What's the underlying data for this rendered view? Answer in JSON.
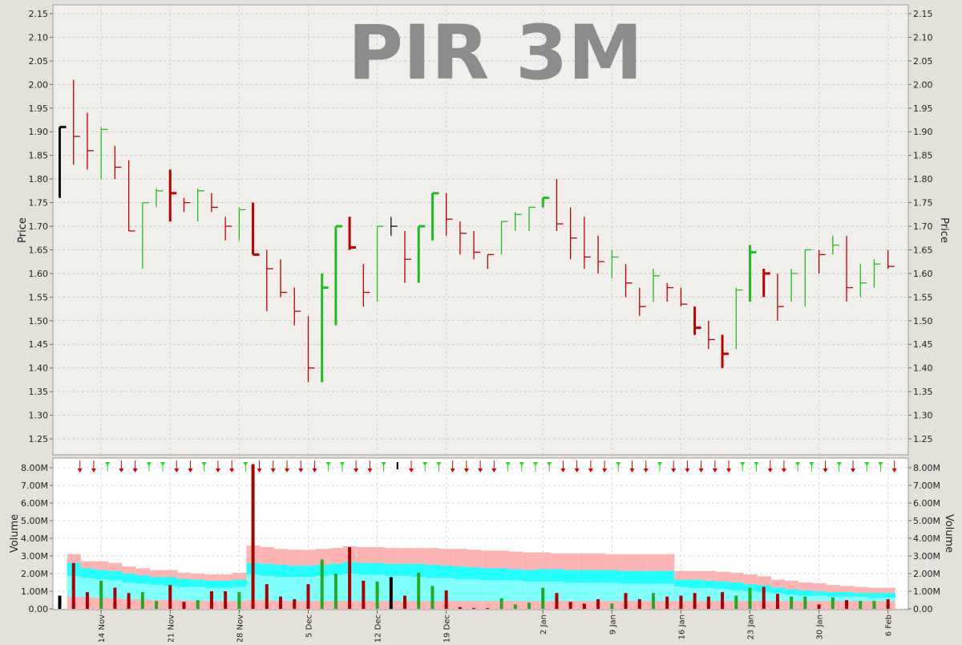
{
  "chart_data": [
    {
      "type": "ohlc",
      "title": "PIR 3M",
      "ylabel": "Price",
      "ylim": [
        1.21,
        2.17
      ],
      "yticks": [
        "1.25",
        "1.30",
        "1.35",
        "1.40",
        "1.45",
        "1.50",
        "1.55",
        "1.60",
        "1.65",
        "1.70",
        "1.75",
        "1.80",
        "1.85",
        "1.90",
        "1.95",
        "2.00",
        "2.05",
        "2.10",
        "2.15"
      ],
      "xtick_labels": [
        "14 Nov",
        "21 Nov",
        "28 Nov",
        "5 Dec",
        "12 Dec",
        "19 Dec",
        "2 Jan",
        "9 Jan",
        "16 Jan",
        "23 Jan",
        "30 Jan",
        "6 Feb"
      ],
      "xtick_index": [
        3,
        8,
        13,
        18,
        23,
        28,
        35,
        40,
        45,
        50,
        55,
        60
      ],
      "bars": [
        {
          "h": 1.91,
          "l": 1.76,
          "o": 1.91,
          "c": 1.91,
          "dir": "flat",
          "w": "thick"
        },
        {
          "h": 2.01,
          "l": 1.83,
          "o": 1.89,
          "c": 1.89,
          "dir": "down",
          "w": "thin"
        },
        {
          "h": 1.94,
          "l": 1.82,
          "o": 1.86,
          "c": 1.86,
          "dir": "down",
          "w": "thin"
        },
        {
          "h": 1.91,
          "l": 1.8,
          "o": 1.9,
          "c": 1.905,
          "dir": "up",
          "w": "thin"
        },
        {
          "h": 1.87,
          "l": 1.8,
          "o": 1.825,
          "c": 1.825,
          "dir": "down",
          "w": "thin"
        },
        {
          "h": 1.84,
          "l": 1.69,
          "o": 1.69,
          "c": 1.69,
          "dir": "down",
          "w": "thin"
        },
        {
          "h": 1.75,
          "l": 1.61,
          "o": 1.75,
          "c": 1.75,
          "dir": "up",
          "w": "thin"
        },
        {
          "h": 1.78,
          "l": 1.74,
          "o": 1.775,
          "c": 1.775,
          "dir": "up",
          "w": "thin"
        },
        {
          "h": 1.82,
          "l": 1.71,
          "o": 1.77,
          "c": 1.77,
          "dir": "down",
          "w": "thick"
        },
        {
          "h": 1.76,
          "l": 1.73,
          "o": 1.75,
          "c": 1.75,
          "dir": "down",
          "w": "thin"
        },
        {
          "h": 1.78,
          "l": 1.71,
          "o": 1.775,
          "c": 1.775,
          "dir": "up",
          "w": "thin"
        },
        {
          "h": 1.77,
          "l": 1.73,
          "o": 1.74,
          "c": 1.74,
          "dir": "down",
          "w": "thin"
        },
        {
          "h": 1.72,
          "l": 1.67,
          "o": 1.7,
          "c": 1.7,
          "dir": "down",
          "w": "thin"
        },
        {
          "h": 1.74,
          "l": 1.67,
          "o": 1.73,
          "c": 1.735,
          "dir": "up",
          "w": "thin"
        },
        {
          "h": 1.75,
          "l": 1.64,
          "o": 1.64,
          "c": 1.64,
          "dir": "down",
          "w": "thick"
        },
        {
          "h": 1.65,
          "l": 1.52,
          "o": 1.61,
          "c": 1.61,
          "dir": "down",
          "w": "thin"
        },
        {
          "h": 1.63,
          "l": 1.55,
          "o": 1.56,
          "c": 1.56,
          "dir": "down",
          "w": "thin"
        },
        {
          "h": 1.57,
          "l": 1.49,
          "o": 1.52,
          "c": 1.52,
          "dir": "down",
          "w": "thin"
        },
        {
          "h": 1.51,
          "l": 1.37,
          "o": 1.4,
          "c": 1.4,
          "dir": "down",
          "w": "thin"
        },
        {
          "h": 1.6,
          "l": 1.37,
          "o": 1.57,
          "c": 1.57,
          "dir": "up",
          "w": "thick"
        },
        {
          "h": 1.7,
          "l": 1.49,
          "o": 1.7,
          "c": 1.7,
          "dir": "up",
          "w": "thick"
        },
        {
          "h": 1.72,
          "l": 1.65,
          "o": 1.655,
          "c": 1.655,
          "dir": "down",
          "w": "thick"
        },
        {
          "h": 1.62,
          "l": 1.53,
          "o": 1.56,
          "c": 1.56,
          "dir": "down",
          "w": "thin"
        },
        {
          "h": 1.7,
          "l": 1.54,
          "o": 1.7,
          "c": 1.7,
          "dir": "up",
          "w": "thin"
        },
        {
          "h": 1.72,
          "l": 1.68,
          "o": 1.7,
          "c": 1.7,
          "dir": "flat",
          "w": "thin"
        },
        {
          "h": 1.69,
          "l": 1.58,
          "o": 1.63,
          "c": 1.63,
          "dir": "down",
          "w": "thin"
        },
        {
          "h": 1.7,
          "l": 1.58,
          "o": 1.7,
          "c": 1.7,
          "dir": "up",
          "w": "thick"
        },
        {
          "h": 1.77,
          "l": 1.67,
          "o": 1.77,
          "c": 1.77,
          "dir": "up",
          "w": "thick"
        },
        {
          "h": 1.77,
          "l": 1.68,
          "o": 1.715,
          "c": 1.715,
          "dir": "down",
          "w": "thin"
        },
        {
          "h": 1.71,
          "l": 1.64,
          "o": 1.685,
          "c": 1.685,
          "dir": "down",
          "w": "thin"
        },
        {
          "h": 1.69,
          "l": 1.63,
          "o": 1.645,
          "c": 1.645,
          "dir": "down",
          "w": "thin"
        },
        {
          "h": 1.64,
          "l": 1.61,
          "o": 1.64,
          "c": 1.64,
          "dir": "down",
          "w": "thin"
        },
        {
          "h": 1.71,
          "l": 1.64,
          "o": 1.71,
          "c": 1.71,
          "dir": "up",
          "w": "thin"
        },
        {
          "h": 1.73,
          "l": 1.69,
          "o": 1.725,
          "c": 1.725,
          "dir": "up",
          "w": "thin"
        },
        {
          "h": 1.74,
          "l": 1.69,
          "o": 1.74,
          "c": 1.74,
          "dir": "up",
          "w": "thin"
        },
        {
          "h": 1.76,
          "l": 1.74,
          "o": 1.76,
          "c": 1.76,
          "dir": "up",
          "w": "thick"
        },
        {
          "h": 1.8,
          "l": 1.69,
          "o": 1.705,
          "c": 1.705,
          "dir": "down",
          "w": "thin"
        },
        {
          "h": 1.74,
          "l": 1.63,
          "o": 1.675,
          "c": 1.675,
          "dir": "down",
          "w": "thin"
        },
        {
          "h": 1.72,
          "l": 1.61,
          "o": 1.635,
          "c": 1.635,
          "dir": "down",
          "w": "thin"
        },
        {
          "h": 1.68,
          "l": 1.6,
          "o": 1.625,
          "c": 1.625,
          "dir": "down",
          "w": "thin"
        },
        {
          "h": 1.65,
          "l": 1.59,
          "o": 1.635,
          "c": 1.635,
          "dir": "up",
          "w": "thin"
        },
        {
          "h": 1.62,
          "l": 1.55,
          "o": 1.58,
          "c": 1.58,
          "dir": "down",
          "w": "thin"
        },
        {
          "h": 1.57,
          "l": 1.51,
          "o": 1.53,
          "c": 1.53,
          "dir": "down",
          "w": "thin"
        },
        {
          "h": 1.61,
          "l": 1.54,
          "o": 1.595,
          "c": 1.595,
          "dir": "up",
          "w": "thin"
        },
        {
          "h": 1.58,
          "l": 1.54,
          "o": 1.57,
          "c": 1.57,
          "dir": "down",
          "w": "thin"
        },
        {
          "h": 1.57,
          "l": 1.53,
          "o": 1.535,
          "c": 1.535,
          "dir": "down",
          "w": "thin"
        },
        {
          "h": 1.53,
          "l": 1.47,
          "o": 1.485,
          "c": 1.485,
          "dir": "down",
          "w": "thick"
        },
        {
          "h": 1.5,
          "l": 1.44,
          "o": 1.46,
          "c": 1.46,
          "dir": "down",
          "w": "thin"
        },
        {
          "h": 1.47,
          "l": 1.4,
          "o": 1.43,
          "c": 1.43,
          "dir": "down",
          "w": "thick"
        },
        {
          "h": 1.57,
          "l": 1.44,
          "o": 1.565,
          "c": 1.565,
          "dir": "up",
          "w": "thin"
        },
        {
          "h": 1.66,
          "l": 1.54,
          "o": 1.645,
          "c": 1.645,
          "dir": "up",
          "w": "thick"
        },
        {
          "h": 1.61,
          "l": 1.55,
          "o": 1.6,
          "c": 1.6,
          "dir": "down",
          "w": "thick"
        },
        {
          "h": 1.6,
          "l": 1.5,
          "o": 1.53,
          "c": 1.53,
          "dir": "down",
          "w": "thin"
        },
        {
          "h": 1.61,
          "l": 1.54,
          "o": 1.6,
          "c": 1.6,
          "dir": "up",
          "w": "thin"
        },
        {
          "h": 1.65,
          "l": 1.53,
          "o": 1.65,
          "c": 1.65,
          "dir": "up",
          "w": "thin"
        },
        {
          "h": 1.65,
          "l": 1.6,
          "o": 1.64,
          "c": 1.64,
          "dir": "down",
          "w": "thin"
        },
        {
          "h": 1.68,
          "l": 1.64,
          "o": 1.66,
          "c": 1.66,
          "dir": "up",
          "w": "thin"
        },
        {
          "h": 1.68,
          "l": 1.54,
          "o": 1.57,
          "c": 1.57,
          "dir": "down",
          "w": "thin"
        },
        {
          "h": 1.62,
          "l": 1.55,
          "o": 1.58,
          "c": 1.58,
          "dir": "up",
          "w": "thin"
        },
        {
          "h": 1.63,
          "l": 1.57,
          "o": 1.62,
          "c": 1.62,
          "dir": "up",
          "w": "thin"
        },
        {
          "h": 1.65,
          "l": 1.61,
          "o": 1.615,
          "c": 1.615,
          "dir": "down",
          "w": "thin"
        }
      ],
      "colors": {
        "up": "#22bb22",
        "down": "#bb0000",
        "flat": "#111111",
        "background": "#f0efec",
        "grid": "#cccccc",
        "title": "#8c8c8c"
      }
    },
    {
      "type": "bar",
      "title": "",
      "ylabel": "Volume",
      "ylim": [
        0,
        8300000
      ],
      "yticks": [
        "0.00",
        "1.00M",
        "2.00M",
        "3.00M",
        "4.00M",
        "5.00M",
        "6.00M",
        "7.00M",
        "8.00M"
      ],
      "yticks_values": [
        0,
        1000000,
        2000000,
        3000000,
        4000000,
        5000000,
        6000000,
        7000000,
        8000000
      ],
      "volume": [
        0.75,
        2.6,
        0.95,
        1.6,
        1.2,
        0.9,
        0.95,
        0.45,
        1.35,
        0.4,
        0.5,
        1.0,
        1.0,
        0.95,
        8.2,
        1.4,
        0.7,
        0.55,
        1.4,
        2.8,
        2.0,
        3.5,
        1.6,
        1.55,
        1.8,
        0.75,
        2.05,
        1.3,
        1.05,
        0.1,
        0.05,
        0.05,
        0.6,
        0.25,
        0.35,
        1.2,
        0.9,
        0.4,
        0.3,
        0.55,
        0.3,
        0.9,
        0.55,
        0.9,
        0.7,
        0.75,
        0.9,
        0.7,
        0.95,
        0.75,
        1.2,
        1.25,
        0.85,
        0.7,
        0.7,
        0.25,
        0.65,
        0.5,
        0.45,
        0.45,
        0.55
      ],
      "band_outer": [
        null,
        3.1,
        2.7,
        2.7,
        2.6,
        2.4,
        2.3,
        2.2,
        2.2,
        2.05,
        2.0,
        1.95,
        1.95,
        2.05,
        3.6,
        3.5,
        3.4,
        3.35,
        3.35,
        3.4,
        3.45,
        3.55,
        3.5,
        3.5,
        3.45,
        3.45,
        3.45,
        3.45,
        3.4,
        3.4,
        3.35,
        3.3,
        3.3,
        3.25,
        3.2,
        3.2,
        3.15,
        3.15,
        3.15,
        3.15,
        3.1,
        3.1,
        3.1,
        3.1,
        3.1,
        2.15,
        2.15,
        2.15,
        2.1,
        2.05,
        1.95,
        1.85,
        1.65,
        1.6,
        1.5,
        1.45,
        1.35,
        1.3,
        1.25,
        1.2,
        1.2
      ],
      "band_upper": [
        null,
        2.6,
        2.3,
        2.2,
        2.15,
        2.0,
        1.9,
        1.8,
        1.8,
        1.7,
        1.65,
        1.6,
        1.6,
        1.65,
        2.6,
        2.55,
        2.5,
        2.45,
        2.45,
        2.5,
        2.55,
        2.65,
        2.6,
        2.6,
        2.55,
        2.55,
        2.55,
        2.5,
        2.45,
        2.4,
        2.35,
        2.3,
        2.3,
        2.25,
        2.2,
        2.25,
        2.25,
        2.2,
        2.2,
        2.2,
        2.2,
        2.15,
        2.15,
        2.15,
        2.15,
        1.65,
        1.65,
        1.6,
        1.55,
        1.5,
        1.4,
        1.35,
        1.2,
        1.1,
        1.05,
        1.0,
        0.95,
        0.95,
        0.9,
        0.9,
        0.9
      ],
      "band_mid": [
        null,
        1.5,
        1.4,
        1.35,
        1.3,
        1.2,
        1.15,
        1.1,
        1.05,
        1.0,
        1.0,
        0.95,
        0.95,
        1.0,
        1.55,
        1.5,
        1.45,
        1.45,
        1.45,
        1.5,
        1.55,
        1.6,
        1.55,
        1.55,
        1.5,
        1.5,
        1.45,
        1.4,
        1.4,
        1.35,
        1.35,
        1.3,
        1.3,
        1.3,
        1.25,
        1.25,
        1.25,
        1.2,
        1.2,
        1.2,
        1.2,
        1.15,
        1.15,
        1.15,
        1.15,
        1.0,
        0.95,
        0.95,
        0.9,
        0.85,
        0.8,
        0.75,
        0.7,
        0.65,
        0.6,
        0.6,
        0.55,
        0.55,
        0.55,
        0.5,
        0.5
      ],
      "band_lower": [
        null,
        0.7,
        0.65,
        0.62,
        0.6,
        0.55,
        0.55,
        0.5,
        0.5,
        0.48,
        0.46,
        0.45,
        0.45,
        0.45,
        0.5,
        0.48,
        0.46,
        0.45,
        0.45,
        0.45,
        0.45,
        0.45,
        0.45,
        0.45,
        0.45,
        0.45,
        0.45,
        0.45,
        0.45,
        0.45,
        0.45,
        0.45,
        0.45,
        0.45,
        0.45,
        0.45,
        0.45,
        0.45,
        0.45,
        0.45,
        0.45,
        0.45,
        0.45,
        0.45,
        0.45,
        0.45,
        0.45,
        0.45,
        0.45,
        0.45,
        0.45,
        0.45,
        0.45,
        0.45,
        0.45,
        0.45,
        0.45,
        0.45,
        0.45,
        0.45,
        0.45
      ],
      "band_unit": "M",
      "colors": {
        "up": "#22aa22",
        "down": "#aa0000",
        "flat": "#000000",
        "band_outer": "#ffb4b4",
        "band_cyan": "#22ffff",
        "band_light": "#80ffff",
        "background": "#ffffff"
      }
    }
  ]
}
